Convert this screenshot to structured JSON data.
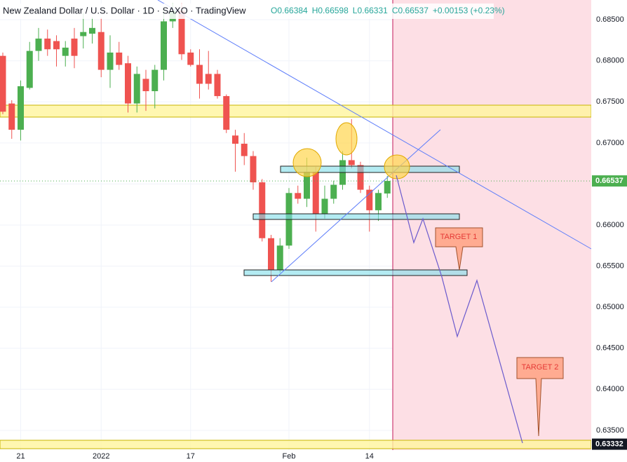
{
  "chart_data": {
    "type": "candlestick",
    "title": "New Zealand Dollar / U.S. Dollar · 1D · SAXO · TradingView",
    "ohlc_header": [
      "O0.66384",
      "H0.66598",
      "L0.66331",
      "C0.66537",
      "+0.00153 (+0.23%)"
    ],
    "categories": [
      null,
      null,
      "21",
      null,
      null,
      null,
      null,
      null,
      null,
      null,
      null,
      "2022",
      null,
      null,
      null,
      null,
      null,
      null,
      null,
      null,
      null,
      "17",
      null,
      null,
      null,
      null,
      null,
      null,
      null,
      null,
      null,
      null,
      "Feb",
      null,
      null,
      null,
      null,
      null,
      null,
      null,
      null,
      "14",
      null,
      null
    ],
    "open": [
      0.6806,
      0.6748,
      0.6716,
      0.6767,
      0.6812,
      0.6827,
      0.6824,
      0.6806,
      0.6827,
      0.683,
      0.6833,
      0.6835,
      0.6789,
      0.681,
      0.6797,
      0.6748,
      0.6778,
      0.6763,
      0.6789,
      0.6848,
      0.6861,
      0.681,
      0.6795,
      0.6784,
      0.6784,
      0.6757,
      0.6709,
      0.6699,
      0.6684,
      0.6652,
      0.6584,
      0.6545,
      0.6575,
      0.6639,
      0.6632,
      0.6665,
      0.6614,
      0.6632,
      0.6649,
      0.6679,
      0.6673,
      0.6643,
      0.6618,
      0.66384
    ],
    "high": [
      0.681,
      0.6752,
      0.6776,
      0.6823,
      0.684,
      0.6838,
      0.6831,
      0.6824,
      0.684,
      0.6858,
      0.6853,
      0.6853,
      0.6831,
      0.6823,
      0.6806,
      0.6793,
      0.6789,
      0.6795,
      0.6861,
      0.687,
      0.687,
      0.6814,
      0.6814,
      0.6812,
      0.6789,
      0.6759,
      0.6716,
      0.6712,
      0.669,
      0.6656,
      0.6588,
      0.6584,
      0.6645,
      0.6648,
      0.6682,
      0.6671,
      0.6648,
      0.6654,
      0.669,
      0.6729,
      0.6677,
      0.6648,
      0.6643,
      0.66598
    ],
    "low": [
      0.6735,
      0.6705,
      0.6703,
      0.6765,
      0.68,
      0.6806,
      0.6793,
      0.6793,
      0.6791,
      0.6815,
      0.6821,
      0.678,
      0.6767,
      0.6789,
      0.6737,
      0.6737,
      0.6739,
      0.6742,
      0.6776,
      0.684,
      0.6801,
      0.6793,
      0.6754,
      0.6765,
      0.6754,
      0.6712,
      0.6665,
      0.6673,
      0.6643,
      0.658,
      0.6531,
      0.6542,
      0.6571,
      0.6626,
      0.6622,
      0.6592,
      0.6608,
      0.6626,
      0.6643,
      0.6669,
      0.6639,
      0.6592,
      0.6605,
      0.66331
    ],
    "close": [
      0.6738,
      0.6716,
      0.6769,
      0.6812,
      0.6827,
      0.6814,
      0.6814,
      0.6816,
      0.6806,
      0.6835,
      0.684,
      0.6789,
      0.681,
      0.6795,
      0.6748,
      0.6784,
      0.6763,
      0.6789,
      0.6848,
      0.6861,
      0.6808,
      0.6795,
      0.6772,
      0.6772,
      0.6757,
      0.6716,
      0.6699,
      0.6684,
      0.6652,
      0.6584,
      0.6545,
      0.6575,
      0.6639,
      0.6632,
      0.6665,
      0.6614,
      0.6632,
      0.6649,
      0.6679,
      0.6673,
      0.6643,
      0.6618,
      0.6639,
      0.66537
    ],
    "up_color": "#4caf50",
    "down_color": "#ef5350",
    "ylim": [
      0.6326,
      0.6874
    ],
    "yticks": [
      {
        "value": 0.635,
        "label": "0.63500"
      },
      {
        "value": 0.64,
        "label": "0.64000"
      },
      {
        "value": 0.645,
        "label": "0.64500"
      },
      {
        "value": 0.65,
        "label": "0.65000"
      },
      {
        "value": 0.655,
        "label": "0.65500"
      },
      {
        "value": 0.66,
        "label": "0.66000"
      },
      {
        "value": 0.665,
        "label": "0.66500"
      },
      {
        "value": 0.67,
        "label": "0.67000"
      },
      {
        "value": 0.675,
        "label": "0.67500"
      },
      {
        "value": 0.68,
        "label": "0.68000"
      },
      {
        "value": 0.685,
        "label": "0.68500"
      }
    ],
    "grid": true,
    "current_price": 0.66537,
    "level_price": 0.63332,
    "annotations": [
      "TARGET 1",
      "TARGET 2"
    ]
  }
}
